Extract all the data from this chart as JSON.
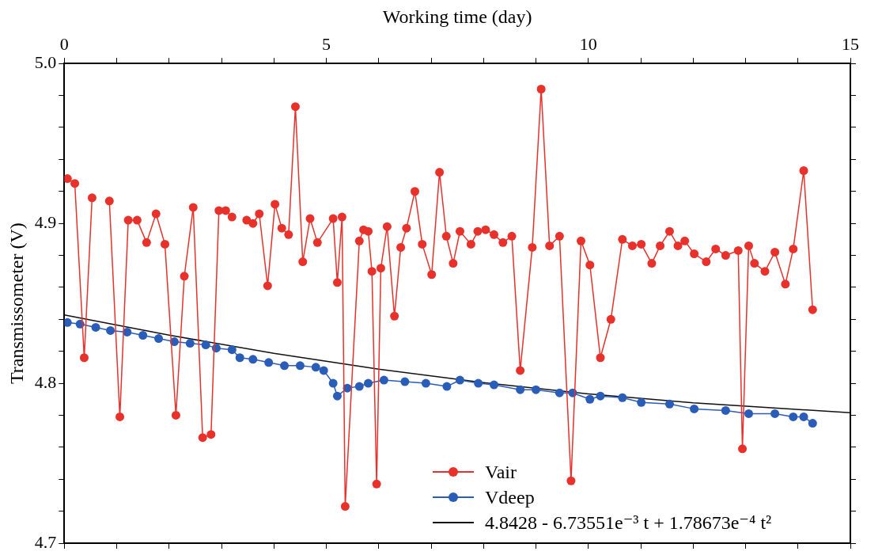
{
  "chart_data": {
    "type": "line",
    "xlabel": "Working time (day)",
    "ylabel": "Transmissometer (V)",
    "xlim": [
      0,
      15
    ],
    "xticks": [
      0,
      {
        "value": 1,
        "label": null
      },
      {
        "value": 2,
        "label": null
      },
      {
        "value": 3,
        "label": null
      },
      {
        "value": 4,
        "label": null
      },
      5,
      {
        "value": 6,
        "label": null
      },
      {
        "value": 7,
        "label": null
      },
      {
        "value": 8,
        "label": null
      },
      {
        "value": 9,
        "label": null
      },
      10,
      {
        "value": 11,
        "label": null
      },
      {
        "value": 12,
        "label": null
      },
      {
        "value": 13,
        "label": null
      },
      {
        "value": 14,
        "label": null
      },
      15
    ],
    "ylim": [
      4.7,
      5.0
    ],
    "yticks": [
      4.7,
      {
        "value": 4.72,
        "label": null
      },
      {
        "value": 4.74,
        "label": null
      },
      {
        "value": 4.76,
        "label": null
      },
      {
        "value": 4.78,
        "label": null
      },
      4.8,
      {
        "value": 4.82,
        "label": null
      },
      {
        "value": 4.84,
        "label": null
      },
      {
        "value": 4.86,
        "label": null
      },
      {
        "value": 4.88,
        "label": null
      },
      4.9,
      {
        "value": 4.92,
        "label": null
      },
      {
        "value": 4.94,
        "label": null
      },
      {
        "value": 4.96,
        "label": null
      },
      {
        "value": 4.98,
        "label": null
      },
      {
        "value": 5,
        "label": "5.0"
      }
    ],
    "grid": false,
    "legend": "bottom",
    "marker": "circle",
    "line_style": "solid",
    "series": [
      {
        "name": "Vair",
        "color": "#e8312a",
        "x": [
          0.06,
          0.2,
          0.38,
          0.53,
          0.69,
          0.86,
          1.06,
          1.22,
          1.39,
          1.57,
          1.75,
          1.92,
          2.13,
          2.29,
          2.46,
          2.64,
          2.8,
          2.95,
          3.08,
          3.2,
          3.35,
          3.48,
          3.6,
          3.72,
          3.88,
          4.02,
          4.15,
          4.28,
          4.41,
          4.55,
          4.69,
          4.83,
          5.13,
          5.21,
          5.3,
          5.36,
          5.63,
          5.71,
          5.8,
          5.87,
          5.96,
          6.04,
          6.16,
          6.3,
          6.42,
          6.53,
          6.69,
          6.83,
          7.01,
          7.16,
          7.29,
          7.42,
          7.55,
          7.76,
          7.89,
          8.04,
          8.2,
          8.37,
          8.54,
          8.7,
          8.93,
          9.1,
          9.26,
          9.45,
          9.67,
          9.86,
          10.03,
          10.23,
          10.43,
          10.65,
          10.84,
          11.01,
          11.21,
          11.37,
          11.55,
          11.71,
          11.84,
          12.02,
          12.25,
          12.43,
          12.62,
          12.86,
          12.94,
          13.06,
          13.17,
          13.37,
          13.56,
          13.76,
          13.91,
          14.11,
          14.28
        ],
        "values": [
          4.928,
          4.925,
          4.816,
          4.916,
          null,
          4.914,
          4.779,
          4.902,
          4.902,
          4.888,
          4.906,
          4.887,
          4.78,
          4.867,
          4.91,
          4.766,
          4.768,
          4.908,
          4.908,
          4.904,
          null,
          4.902,
          4.9,
          4.906,
          4.861,
          4.912,
          4.897,
          4.893,
          4.973,
          4.876,
          4.903,
          4.888,
          4.903,
          4.863,
          4.904,
          4.723,
          4.889,
          4.896,
          4.895,
          4.87,
          4.737,
          4.872,
          4.898,
          4.842,
          4.885,
          4.897,
          4.92,
          4.887,
          4.868,
          4.932,
          4.892,
          4.875,
          4.895,
          4.887,
          4.895,
          4.896,
          4.893,
          4.888,
          4.892,
          4.808,
          4.885,
          4.984,
          4.886,
          4.892,
          4.739,
          4.889,
          4.874,
          4.816,
          4.84,
          4.89,
          4.886,
          4.887,
          4.875,
          4.886,
          4.895,
          4.886,
          4.889,
          4.881,
          4.876,
          4.884,
          4.88,
          4.883,
          4.759,
          4.886,
          4.875,
          4.87,
          4.882,
          4.862,
          4.884,
          4.933,
          4.846
        ]
      },
      {
        "name": "Vdeep",
        "color": "#2a5db8",
        "x": [
          0.06,
          0.3,
          0.6,
          0.88,
          1.2,
          1.5,
          1.8,
          2.1,
          2.4,
          2.7,
          2.9,
          3.2,
          3.35,
          3.6,
          3.9,
          4.2,
          4.5,
          4.8,
          4.95,
          5.13,
          5.21,
          5.4,
          5.63,
          5.8,
          6.1,
          6.5,
          6.9,
          7.3,
          7.55,
          7.9,
          8.2,
          8.7,
          9.0,
          9.45,
          9.7,
          10.03,
          10.23,
          10.65,
          11.01,
          11.55,
          12.02,
          12.62,
          13.06,
          13.56,
          13.91,
          14.11,
          14.28
        ],
        "values": [
          4.838,
          4.837,
          4.835,
          4.833,
          4.832,
          4.83,
          4.828,
          4.826,
          4.825,
          4.824,
          4.822,
          4.821,
          4.816,
          4.815,
          4.813,
          4.811,
          4.811,
          4.81,
          4.808,
          4.8,
          4.792,
          4.797,
          4.798,
          4.8,
          4.802,
          4.801,
          4.8,
          4.798,
          4.802,
          4.8,
          4.799,
          4.796,
          4.796,
          4.794,
          4.794,
          4.79,
          4.792,
          4.791,
          4.788,
          4.787,
          4.784,
          4.783,
          4.781,
          4.781,
          4.779,
          4.779,
          4.775
        ]
      },
      {
        "name": "4.8428 - 6.73551e⁻³ t + 1.78673e⁻⁴ t²",
        "color": "#111111",
        "type": "line",
        "marker": "none",
        "x": [
          0,
          2,
          4,
          6,
          8,
          10,
          12,
          15
        ],
        "values": [
          4.8428,
          4.8301,
          4.8187,
          4.8088,
          4.8004,
          4.7934,
          4.7878,
          4.7816
        ]
      }
    ]
  }
}
